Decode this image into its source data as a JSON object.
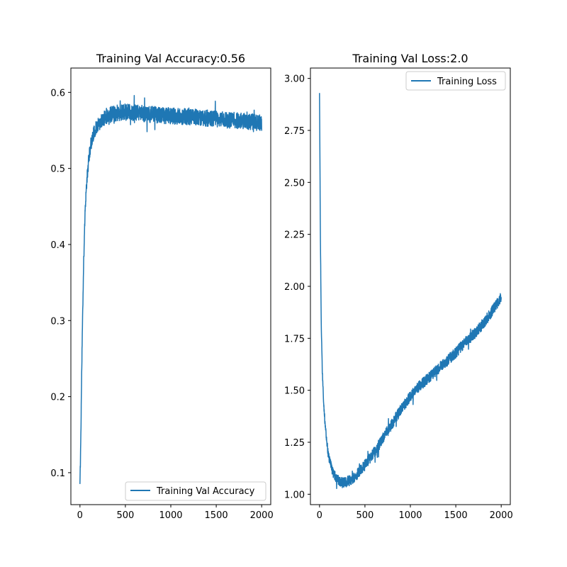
{
  "chart_data": [
    {
      "type": "line",
      "title": "Training Val Accuracy:0.56",
      "xlabel": "",
      "ylabel": "",
      "xlim": [
        -100,
        2100
      ],
      "ylim": [
        0.058,
        0.632
      ],
      "xticks": [
        0,
        500,
        1000,
        1500,
        2000
      ],
      "xtick_labels": [
        "0",
        "500",
        "1000",
        "1500",
        "2000"
      ],
      "yticks": [
        0.1,
        0.2,
        0.3,
        0.4,
        0.5,
        0.6
      ],
      "ytick_labels": [
        "0.1",
        "0.2",
        "0.3",
        "0.4",
        "0.5",
        "0.6"
      ],
      "grid": false,
      "legend_position": "lower-right",
      "series": [
        {
          "name": "Training Val Accuracy",
          "color": "#1f77b4",
          "x": [
            0,
            10,
            20,
            30,
            40,
            50,
            60,
            80,
            100,
            120,
            150,
            200,
            250,
            300,
            400,
            500,
            600,
            700,
            800,
            900,
            1000,
            1100,
            1200,
            1300,
            1400,
            1500,
            1600,
            1700,
            1800,
            1900,
            2000
          ],
          "y": [
            0.085,
            0.15,
            0.24,
            0.31,
            0.37,
            0.42,
            0.455,
            0.49,
            0.515,
            0.532,
            0.546,
            0.558,
            0.565,
            0.57,
            0.573,
            0.574,
            0.573,
            0.572,
            0.571,
            0.57,
            0.569,
            0.568,
            0.568,
            0.567,
            0.566,
            0.565,
            0.564,
            0.563,
            0.562,
            0.561,
            0.56
          ]
        }
      ]
    },
    {
      "type": "line",
      "title": "Training Val Loss:2.0",
      "xlabel": "",
      "ylabel": "",
      "xlim": [
        -100,
        2100
      ],
      "ylim": [
        0.95,
        3.05
      ],
      "xticks": [
        0,
        500,
        1000,
        1500,
        2000
      ],
      "xtick_labels": [
        "0",
        "500",
        "1000",
        "1500",
        "2000"
      ],
      "yticks": [
        1.0,
        1.25,
        1.5,
        1.75,
        2.0,
        2.25,
        2.5,
        2.75,
        3.0
      ],
      "ytick_labels": [
        "1.00",
        "1.25",
        "1.50",
        "1.75",
        "2.00",
        "2.25",
        "2.50",
        "2.75",
        "3.00"
      ],
      "grid": false,
      "legend_position": "upper-right",
      "series": [
        {
          "name": "Training Loss",
          "color": "#1f77b4",
          "x": [
            0,
            10,
            20,
            30,
            50,
            75,
            100,
            150,
            200,
            250,
            300,
            350,
            400,
            500,
            600,
            700,
            800,
            900,
            1000,
            1100,
            1200,
            1300,
            1400,
            1500,
            1600,
            1700,
            1800,
            1900,
            2000
          ],
          "y": [
            2.94,
            2.2,
            1.8,
            1.6,
            1.4,
            1.27,
            1.18,
            1.1,
            1.07,
            1.055,
            1.06,
            1.07,
            1.09,
            1.14,
            1.2,
            1.27,
            1.34,
            1.41,
            1.47,
            1.52,
            1.56,
            1.6,
            1.64,
            1.68,
            1.73,
            1.77,
            1.82,
            1.88,
            1.95
          ]
        }
      ]
    }
  ]
}
